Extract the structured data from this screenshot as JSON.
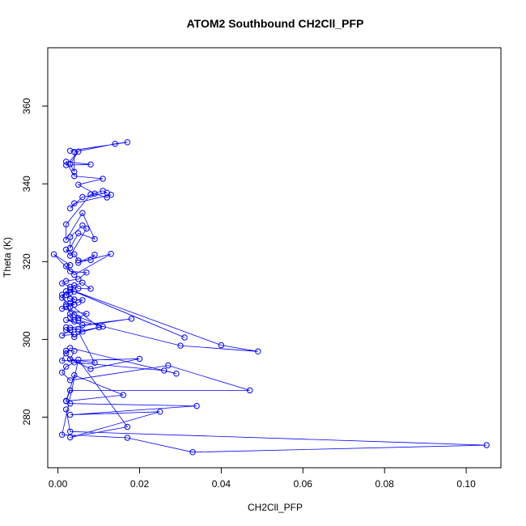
{
  "chart_data": {
    "type": "line",
    "title": "ATOM2 Southbound CH2Cll_PFP",
    "xlabel": "CH2Cll_PFP",
    "ylabel": "Theta (K)",
    "xlim": [
      -0.0025,
      0.1085
    ],
    "ylim": [
      267,
      375
    ],
    "x_ticks": [
      0.0,
      0.02,
      0.04,
      0.06,
      0.08,
      0.1
    ],
    "x_tick_labels": [
      "0.00",
      "0.02",
      "0.04",
      "0.06",
      "0.08",
      "0.10"
    ],
    "y_ticks": [
      280,
      300,
      320,
      340,
      360
    ],
    "y_tick_labels": [
      "280",
      "300",
      "320",
      "340",
      "360"
    ],
    "grid": false,
    "series_color": "#0000ff",
    "series": [
      {
        "x": [
          0.003,
          0.017,
          0.014,
          0.004,
          0.004,
          0.003,
          0.005,
          0.002,
          0.008,
          0.002,
          0.004,
          0.011,
          0.005,
          0.009,
          0.012,
          0.013,
          0.004,
          0.003,
          0.006,
          0.012,
          0.011,
          0.008,
          0.002,
          0.002,
          0.006,
          0.009,
          0.005,
          0.003,
          0.003,
          0.006,
          0.007,
          0.003,
          0.002,
          0.004,
          0.005,
          0.008,
          0.009,
          0.005,
          0.013,
          0.004,
          0.002,
          0.003,
          -0.001,
          0.003,
          0.007,
          0.005,
          0.002,
          0.001,
          0.003,
          0.006,
          0.008,
          0.005,
          0.004,
          0.003,
          0.002,
          0.003,
          0.006,
          0.005,
          0.003,
          0.004,
          0.002,
          0.001,
          0.007,
          0.005,
          0.003,
          0.004,
          0.002,
          0.006,
          0.018,
          0.003,
          0.005,
          0.002,
          0.004,
          0.001,
          0.003,
          0.002,
          0.004,
          0.006,
          0.011,
          0.004,
          0.003,
          0.002,
          0.001,
          0.004,
          0.031,
          0.003,
          0.04,
          0.049,
          0.03,
          0.005,
          0.003,
          0.004,
          0.002,
          0.001,
          0.01,
          0.005,
          0.009,
          0.003,
          0.004,
          0.002,
          0.001,
          0.02,
          0.008,
          0.003,
          0.002,
          0.003,
          0.029,
          0.026,
          0.004,
          0.002,
          0.001,
          0.003,
          0.027,
          0.047,
          0.003,
          0.002,
          0.004,
          0.016,
          0.002,
          0.003,
          0.034,
          0.003,
          0.025,
          0.003,
          0.017,
          0.005,
          0.001,
          0.017,
          0.033,
          0.105,
          0.003,
          0.002
        ],
        "y": [
          348.5,
          350.7,
          350.3,
          348.2,
          343.1,
          345.1,
          348.3,
          344.8,
          345.0,
          345.7,
          342.0,
          341.3,
          339.8,
          337.5,
          336.5,
          337.2,
          335.0,
          333.7,
          336.6,
          337.7,
          338.2,
          337.3,
          329.6,
          325.6,
          332.5,
          325.8,
          327.3,
          323.5,
          326.3,
          329.3,
          328.5,
          321.5,
          323.1,
          321.9,
          320.3,
          320.4,
          321.8,
          319.7,
          322.0,
          316.6,
          318.8,
          319.1,
          321.9,
          317.5,
          317.2,
          315.5,
          315.0,
          314.4,
          313.5,
          314.6,
          313.0,
          313.1,
          313.9,
          312.0,
          311.4,
          310.4,
          310.1,
          309.5,
          309.3,
          308.9,
          308.5,
          307.9,
          306.6,
          305.5,
          305.7,
          304.6,
          305.0,
          303.7,
          305.3,
          303.0,
          302.6,
          302.4,
          301.3,
          301.0,
          302.4,
          303.1,
          300.6,
          302.0,
          303.3,
          306.3,
          306.6,
          309.0,
          311.5,
          312.3,
          300.5,
          312.8,
          298.5,
          296.9,
          298.4,
          304.9,
          308.4,
          310.3,
          312.4,
          310.7,
          303.1,
          302.0,
          294.0,
          294.9,
          297.0,
          297.1,
          294.5,
          295.0,
          292.4,
          294.9,
          296.4,
          297.8,
          291.2,
          292.0,
          294.1,
          293.0,
          291.5,
          289.5,
          293.3,
          286.9,
          286.9,
          284.2,
          290.8,
          285.7,
          284.1,
          283.5,
          282.9,
          280.6,
          281.4,
          274.8,
          277.5,
          294.8,
          275.5,
          274.7,
          271.0,
          272.8,
          276.3,
          282.0
        ]
      }
    ]
  }
}
